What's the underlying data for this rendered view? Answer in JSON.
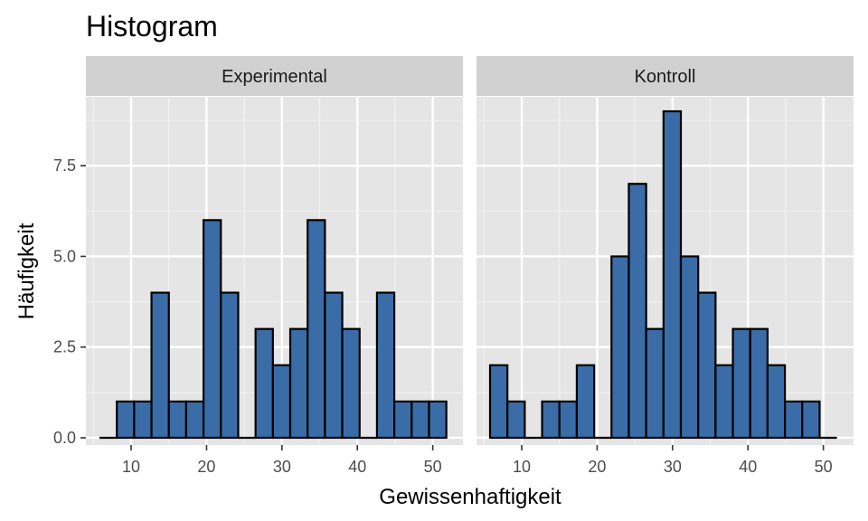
{
  "chart_data": {
    "type": "bar",
    "title": "Histogram",
    "xlabel": "Gewissenhaftigkeit",
    "ylabel": "Häufigkeit",
    "xlim": [
      4,
      54
    ],
    "ylim": [
      -0.2,
      9.4
    ],
    "x_ticks": [
      10,
      20,
      30,
      40,
      50
    ],
    "x_tick_labels": [
      "10",
      "20",
      "30",
      "40",
      "50"
    ],
    "y_ticks": [
      0,
      2.5,
      5,
      7.5
    ],
    "y_tick_labels": [
      "0.0",
      "2.5",
      "5.0",
      "7.5"
    ],
    "bin_width": 2.3,
    "bin_start": 5.8,
    "bar_color": "#3a6ca8",
    "bar_outline": "#000000",
    "panel_background": "#e5e5e5",
    "strip_background": "#d1d1d1",
    "grid": true,
    "panels": [
      {
        "name": "Experimental",
        "counts": [
          0,
          1,
          1,
          4,
          1,
          1,
          6,
          4,
          0,
          3,
          2,
          3,
          6,
          4,
          3,
          0,
          4,
          1,
          1,
          1
        ]
      },
      {
        "name": "Kontroll",
        "counts": [
          2,
          1,
          0,
          1,
          1,
          2,
          0,
          5,
          7,
          3,
          9,
          5,
          4,
          2,
          3,
          3,
          2,
          1,
          1,
          0
        ]
      }
    ]
  }
}
